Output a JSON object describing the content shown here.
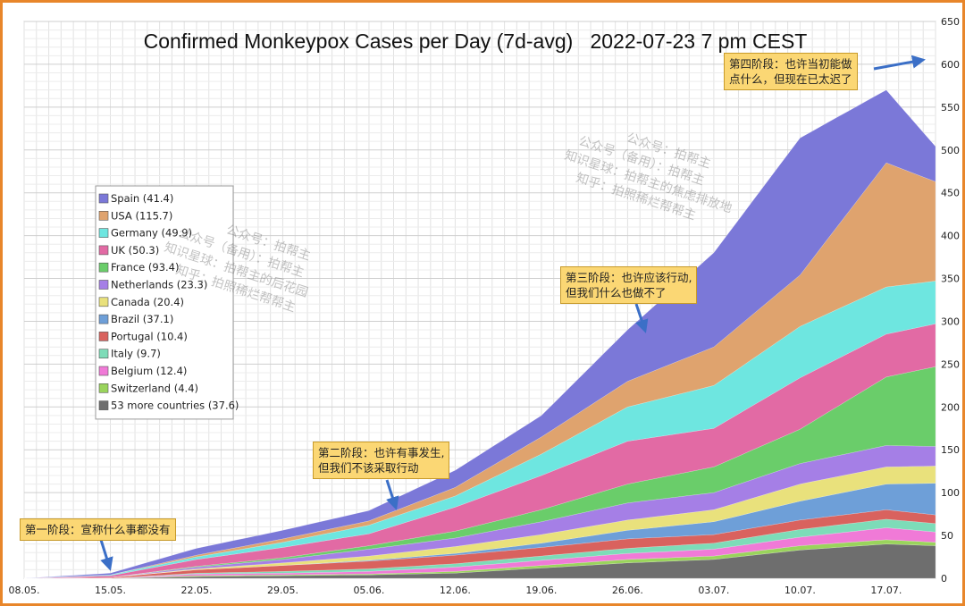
{
  "chart_data": {
    "type": "area",
    "title": "Confirmed Monkeypox Cases per Day (7d-avg)   2022-07-23 7 pm CEST",
    "stacked": true,
    "xlabel": "",
    "ylabel": "",
    "x_start": "2022-05-08",
    "x_end": "2022-07-21",
    "x_ticks": [
      "08.05.",
      "15.05.",
      "22.05.",
      "29.05.",
      "05.06.",
      "12.06.",
      "19.06.",
      "26.06.",
      "03.07.",
      "10.07.",
      "17.07."
    ],
    "y_axis_position": "right",
    "ylim": [
      0,
      650
    ],
    "y_ticks": [
      0,
      50,
      100,
      150,
      200,
      250,
      300,
      350,
      400,
      450,
      500,
      550,
      600,
      650
    ],
    "grid": true,
    "legend_position": "left",
    "series": [
      {
        "name": "53 more countries (37.6)",
        "color": "#6e6e6e",
        "points": [
          [
            "2022-05-08",
            0
          ],
          [
            "2022-05-15",
            0
          ],
          [
            "2022-05-22",
            2
          ],
          [
            "2022-05-29",
            3
          ],
          [
            "2022-06-05",
            4
          ],
          [
            "2022-06-12",
            6
          ],
          [
            "2022-06-19",
            12
          ],
          [
            "2022-06-26",
            18
          ],
          [
            "2022-07-03",
            22
          ],
          [
            "2022-07-10",
            33
          ],
          [
            "2022-07-17",
            40
          ],
          [
            "2022-07-21",
            38
          ]
        ]
      },
      {
        "name": "Switzerland (4.4)",
        "color": "#9ad45c",
        "points": [
          [
            "2022-05-08",
            0
          ],
          [
            "2022-05-15",
            0
          ],
          [
            "2022-05-22",
            1
          ],
          [
            "2022-05-29",
            1
          ],
          [
            "2022-06-05",
            1
          ],
          [
            "2022-06-12",
            2
          ],
          [
            "2022-06-19",
            3
          ],
          [
            "2022-06-26",
            4
          ],
          [
            "2022-07-03",
            4
          ],
          [
            "2022-07-10",
            5
          ],
          [
            "2022-07-17",
            5
          ],
          [
            "2022-07-21",
            4
          ]
        ]
      },
      {
        "name": "Belgium (12.4)",
        "color": "#f07ad7",
        "points": [
          [
            "2022-05-08",
            0
          ],
          [
            "2022-05-15",
            0
          ],
          [
            "2022-05-22",
            2
          ],
          [
            "2022-05-29",
            2
          ],
          [
            "2022-06-05",
            3
          ],
          [
            "2022-06-12",
            5
          ],
          [
            "2022-06-19",
            6
          ],
          [
            "2022-06-26",
            7
          ],
          [
            "2022-07-03",
            8
          ],
          [
            "2022-07-10",
            10
          ],
          [
            "2022-07-17",
            14
          ],
          [
            "2022-07-21",
            12
          ]
        ]
      },
      {
        "name": "Italy (9.7)",
        "color": "#7ddcb8",
        "points": [
          [
            "2022-05-08",
            0
          ],
          [
            "2022-05-15",
            0
          ],
          [
            "2022-05-22",
            1
          ],
          [
            "2022-05-29",
            2
          ],
          [
            "2022-06-05",
            3
          ],
          [
            "2022-06-12",
            4
          ],
          [
            "2022-06-19",
            5
          ],
          [
            "2022-06-26",
            6
          ],
          [
            "2022-07-03",
            7
          ],
          [
            "2022-07-10",
            9
          ],
          [
            "2022-07-17",
            10
          ],
          [
            "2022-07-21",
            10
          ]
        ]
      },
      {
        "name": "Portugal (10.4)",
        "color": "#d9625e",
        "points": [
          [
            "2022-05-08",
            0
          ],
          [
            "2022-05-15",
            1
          ],
          [
            "2022-05-22",
            4
          ],
          [
            "2022-05-29",
            7
          ],
          [
            "2022-06-05",
            9
          ],
          [
            "2022-06-12",
            10
          ],
          [
            "2022-06-19",
            10
          ],
          [
            "2022-06-26",
            11
          ],
          [
            "2022-07-03",
            10
          ],
          [
            "2022-07-10",
            11
          ],
          [
            "2022-07-17",
            11
          ],
          [
            "2022-07-21",
            10
          ]
        ]
      },
      {
        "name": "Brazil (37.1)",
        "color": "#6e9fd8",
        "points": [
          [
            "2022-05-08",
            0
          ],
          [
            "2022-05-15",
            0
          ],
          [
            "2022-05-22",
            0
          ],
          [
            "2022-05-29",
            0
          ],
          [
            "2022-06-05",
            1
          ],
          [
            "2022-06-12",
            2
          ],
          [
            "2022-06-19",
            5
          ],
          [
            "2022-06-26",
            10
          ],
          [
            "2022-07-03",
            15
          ],
          [
            "2022-07-10",
            22
          ],
          [
            "2022-07-17",
            30
          ],
          [
            "2022-07-21",
            37
          ]
        ]
      },
      {
        "name": "Canada (20.4)",
        "color": "#e9e17c",
        "points": [
          [
            "2022-05-08",
            0
          ],
          [
            "2022-05-15",
            0
          ],
          [
            "2022-05-22",
            1
          ],
          [
            "2022-05-29",
            3
          ],
          [
            "2022-06-05",
            5
          ],
          [
            "2022-06-12",
            8
          ],
          [
            "2022-06-19",
            10
          ],
          [
            "2022-06-26",
            12
          ],
          [
            "2022-07-03",
            14
          ],
          [
            "2022-07-10",
            20
          ],
          [
            "2022-07-17",
            20
          ],
          [
            "2022-07-21",
            20
          ]
        ]
      },
      {
        "name": "Netherlands (23.3)",
        "color": "#a57fe6",
        "points": [
          [
            "2022-05-08",
            0
          ],
          [
            "2022-05-15",
            0
          ],
          [
            "2022-05-22",
            2
          ],
          [
            "2022-05-29",
            4
          ],
          [
            "2022-06-05",
            8
          ],
          [
            "2022-06-12",
            10
          ],
          [
            "2022-06-19",
            15
          ],
          [
            "2022-06-26",
            20
          ],
          [
            "2022-07-03",
            20
          ],
          [
            "2022-07-10",
            24
          ],
          [
            "2022-07-17",
            25
          ],
          [
            "2022-07-21",
            23
          ]
        ]
      },
      {
        "name": "France (93.4)",
        "color": "#6acd6a",
        "points": [
          [
            "2022-05-08",
            0
          ],
          [
            "2022-05-15",
            0
          ],
          [
            "2022-05-22",
            1
          ],
          [
            "2022-05-29",
            2
          ],
          [
            "2022-06-05",
            4
          ],
          [
            "2022-06-12",
            8
          ],
          [
            "2022-06-19",
            14
          ],
          [
            "2022-06-26",
            22
          ],
          [
            "2022-07-03",
            30
          ],
          [
            "2022-07-10",
            40
          ],
          [
            "2022-07-17",
            80
          ],
          [
            "2022-07-21",
            93
          ]
        ]
      },
      {
        "name": "UK (50.3)",
        "color": "#e26aa4",
        "points": [
          [
            "2022-05-08",
            0
          ],
          [
            "2022-05-15",
            2
          ],
          [
            "2022-05-22",
            8
          ],
          [
            "2022-05-29",
            12
          ],
          [
            "2022-06-05",
            14
          ],
          [
            "2022-06-12",
            28
          ],
          [
            "2022-06-19",
            40
          ],
          [
            "2022-06-26",
            50
          ],
          [
            "2022-07-03",
            45
          ],
          [
            "2022-07-10",
            60
          ],
          [
            "2022-07-17",
            50
          ],
          [
            "2022-07-21",
            50
          ]
        ]
      },
      {
        "name": "Germany (49.9)",
        "color": "#6ee6e0",
        "points": [
          [
            "2022-05-08",
            0
          ],
          [
            "2022-05-15",
            1
          ],
          [
            "2022-05-22",
            3
          ],
          [
            "2022-05-29",
            6
          ],
          [
            "2022-06-05",
            10
          ],
          [
            "2022-06-12",
            13
          ],
          [
            "2022-06-19",
            25
          ],
          [
            "2022-06-26",
            40
          ],
          [
            "2022-07-03",
            50
          ],
          [
            "2022-07-10",
            60
          ],
          [
            "2022-07-17",
            55
          ],
          [
            "2022-07-21",
            50
          ]
        ]
      },
      {
        "name": "USA (115.7)",
        "color": "#dfa36e",
        "points": [
          [
            "2022-05-08",
            0
          ],
          [
            "2022-05-15",
            0
          ],
          [
            "2022-05-22",
            2
          ],
          [
            "2022-05-29",
            4
          ],
          [
            "2022-06-05",
            5
          ],
          [
            "2022-06-12",
            10
          ],
          [
            "2022-06-19",
            20
          ],
          [
            "2022-06-26",
            30
          ],
          [
            "2022-07-03",
            45
          ],
          [
            "2022-07-10",
            60
          ],
          [
            "2022-07-17",
            145
          ],
          [
            "2022-07-21",
            116
          ]
        ]
      },
      {
        "name": "Spain (41.4)",
        "color": "#7b78d8",
        "points": [
          [
            "2022-05-08",
            0
          ],
          [
            "2022-05-15",
            2
          ],
          [
            "2022-05-22",
            8
          ],
          [
            "2022-05-29",
            10
          ],
          [
            "2022-06-05",
            12
          ],
          [
            "2022-06-12",
            20
          ],
          [
            "2022-06-19",
            25
          ],
          [
            "2022-06-26",
            60
          ],
          [
            "2022-07-03",
            110
          ],
          [
            "2022-07-10",
            160
          ],
          [
            "2022-07-17",
            85
          ],
          [
            "2022-07-21",
            41
          ]
        ]
      }
    ],
    "annotations": [
      {
        "text": "第一阶段：宣称什么事都没有",
        "date": "2022-05-15"
      },
      {
        "text": "第二阶段：也许有事发生,\n但我们不该采取行动",
        "date": "2022-06-06"
      },
      {
        "text": "第三阶段：也许应该行动,\n但我们什么也做不了",
        "date": "2022-06-25"
      },
      {
        "text": "第四阶段：也许当初能做\n点什么，但现在已太迟了",
        "date": "2022-07-19"
      }
    ]
  },
  "watermark_1": [
    "公众号：拍帮主",
    "公众号（备用）：拍帮主",
    "知识星球：拍帮主的后花园",
    "知乎：拍照稀烂帮帮主"
  ],
  "watermark_2": [
    "公众号：拍帮主",
    "公众号（备用）：拍帮主",
    "知识星球：拍帮主的焦虑排放地",
    "知乎：拍照稀烂帮帮主"
  ],
  "colors": {
    "frame": "#e8862a",
    "note_bg": "#fbd774",
    "arrow": "#3b6fc7"
  }
}
